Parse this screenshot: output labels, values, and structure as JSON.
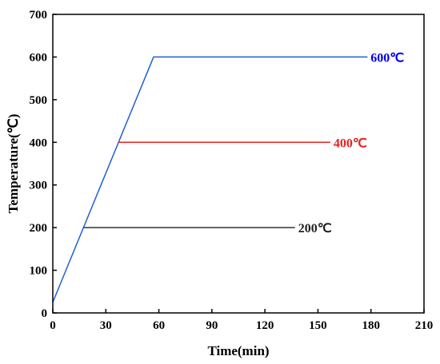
{
  "chart_data": {
    "type": "line",
    "xlabel": "Time(min)",
    "ylabel": "Temperature(℃)",
    "xlim": [
      0,
      210
    ],
    "ylim": [
      0,
      700
    ],
    "xticks": [
      "0",
      "30",
      "60",
      "90",
      "120",
      "150",
      "180",
      "210"
    ],
    "yticks": [
      "0",
      "100",
      "200",
      "300",
      "400",
      "500",
      "600",
      "700"
    ],
    "grid": false,
    "legend": "none",
    "series": [
      {
        "label": "600℃",
        "color": "#1f5fd6",
        "label_color": "#0000ee",
        "points": [
          [
            0,
            25
          ],
          [
            57,
            600
          ],
          [
            178,
            600
          ]
        ]
      },
      {
        "label": "400℃",
        "color": "#e8211f",
        "label_color": "#e8211f",
        "points": [
          [
            37,
            400
          ],
          [
            157,
            400
          ]
        ]
      },
      {
        "label": "200℃",
        "color": "#333333",
        "label_color": "#222222",
        "points": [
          [
            17.5,
            200
          ],
          [
            137,
            200
          ]
        ]
      }
    ]
  }
}
